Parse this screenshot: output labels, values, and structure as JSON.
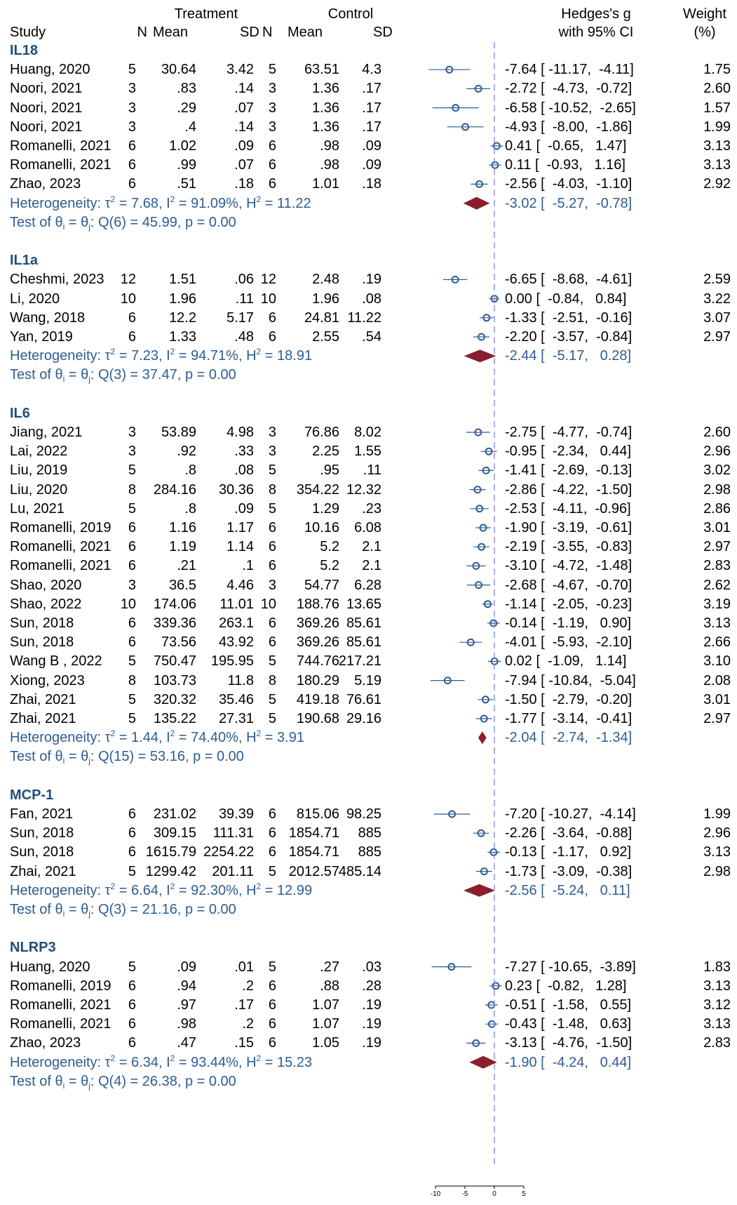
{
  "header": {
    "study": "Study",
    "treatment": "Treatment",
    "control": "Control",
    "n": "N",
    "mean": "Mean",
    "sd": "SD",
    "effect_line1": "Hedges's g",
    "effect_line2": "with 95% CI",
    "weight_line1": "Weight",
    "weight_line2": "(%)"
  },
  "colors": {
    "group_heading": "#1f4e79",
    "summary_text": "#2e5d91",
    "marker": "#2e5d91",
    "diamond": "#8b1e2d",
    "ref_line": "#8a8ae6"
  },
  "chart_data": {
    "type": "forest",
    "x_axis": {
      "ticks": [
        -10,
        -5,
        0,
        5
      ],
      "range": [
        -10,
        5
      ]
    },
    "groups": [
      {
        "name": "IL18",
        "studies": [
          {
            "study": "Huang, 2020",
            "n1": "5",
            "m1": "30.64",
            "sd1": "3.42",
            "n2": "5",
            "m2": "63.51",
            "sd2": "4.3",
            "g": -7.64,
            "lo": -11.17,
            "hi": -4.11,
            "ci_text": "-7.64 [ -11.17,  -4.11]",
            "weight": "1.75"
          },
          {
            "study": "Noori, 2021",
            "n1": "3",
            "m1": ".83",
            "sd1": ".14",
            "n2": "3",
            "m2": "1.36",
            "sd2": ".17",
            "g": -2.72,
            "lo": -4.73,
            "hi": -0.72,
            "ci_text": "-2.72 [  -4.73,  -0.72]",
            "weight": "2.60"
          },
          {
            "study": "Noori, 2021",
            "n1": "3",
            "m1": ".29",
            "sd1": ".07",
            "n2": "3",
            "m2": "1.36",
            "sd2": ".17",
            "g": -6.58,
            "lo": -10.52,
            "hi": -2.65,
            "ci_text": "-6.58 [ -10.52,  -2.65]",
            "weight": "1.57"
          },
          {
            "study": "Noori, 2021",
            "n1": "3",
            "m1": ".4",
            "sd1": ".14",
            "n2": "3",
            "m2": "1.36",
            "sd2": ".17",
            "g": -4.93,
            "lo": -8.0,
            "hi": -1.86,
            "ci_text": "-4.93 [  -8.00,  -1.86]",
            "weight": "1.99"
          },
          {
            "study": "Romanelli, 2021",
            "n1": "6",
            "m1": "1.02",
            "sd1": ".09",
            "n2": "6",
            "m2": ".98",
            "sd2": ".09",
            "g": 0.41,
            "lo": -0.65,
            "hi": 1.47,
            "ci_text": "0.41 [  -0.65,   1.47]",
            "weight": "3.13"
          },
          {
            "study": "Romanelli, 2021",
            "n1": "6",
            "m1": ".99",
            "sd1": ".07",
            "n2": "6",
            "m2": ".98",
            "sd2": ".09",
            "g": 0.11,
            "lo": -0.93,
            "hi": 1.16,
            "ci_text": "0.11 [  -0.93,   1.16]",
            "weight": "3.13"
          },
          {
            "study": "Zhao, 2023",
            "n1": "6",
            "m1": ".51",
            "sd1": ".18",
            "n2": "6",
            "m2": "1.01",
            "sd2": ".18",
            "g": -2.56,
            "lo": -4.03,
            "hi": -1.1,
            "ci_text": "-2.56 [  -4.03,  -1.10]",
            "weight": "2.92"
          }
        ],
        "het_prefix": "Heterogeneity: τ",
        "tau2": "7.68",
        "i2": "91.09%",
        "h2": "11.22",
        "pooled": {
          "g": -3.02,
          "lo": -5.27,
          "hi": -0.78,
          "ci_text": "-3.02 [  -5.27,  -0.78]"
        },
        "test_q": "Q(6) = 45.99, p = 0.00"
      },
      {
        "name": "IL1a",
        "studies": [
          {
            "study": "Cheshmi, 2023",
            "n1": "12",
            "m1": "1.51",
            "sd1": ".06",
            "n2": "12",
            "m2": "2.48",
            "sd2": ".19",
            "g": -6.65,
            "lo": -8.68,
            "hi": -4.61,
            "ci_text": "-6.65 [  -8.68,  -4.61]",
            "weight": "2.59"
          },
          {
            "study": "Li, 2020",
            "n1": "10",
            "m1": "1.96",
            "sd1": ".11",
            "n2": "10",
            "m2": "1.96",
            "sd2": ".08",
            "g": 0.0,
            "lo": -0.84,
            "hi": 0.84,
            "ci_text": "0.00 [  -0.84,   0.84]",
            "weight": "3.22"
          },
          {
            "study": "Wang, 2018",
            "n1": "6",
            "m1": "12.2",
            "sd1": "5.17",
            "n2": "6",
            "m2": "24.81",
            "sd2": "11.22",
            "g": -1.33,
            "lo": -2.51,
            "hi": -0.16,
            "ci_text": "-1.33 [  -2.51,  -0.16]",
            "weight": "3.07"
          },
          {
            "study": "Yan, 2019",
            "n1": "6",
            "m1": "1.33",
            "sd1": ".48",
            "n2": "6",
            "m2": "2.55",
            "sd2": ".54",
            "g": -2.2,
            "lo": -3.57,
            "hi": -0.84,
            "ci_text": "-2.20 [  -3.57,  -0.84]",
            "weight": "2.97"
          }
        ],
        "het_prefix": "Heterogeneity: τ",
        "tau2": "7.23",
        "i2": "94.71%",
        "h2": "18.91",
        "pooled": {
          "g": -2.44,
          "lo": -5.17,
          "hi": 0.28,
          "ci_text": "-2.44 [  -5.17,   0.28]"
        },
        "test_q": "Q(3) = 37.47, p = 0.00"
      },
      {
        "name": "IL6",
        "studies": [
          {
            "study": "Jiang, 2021",
            "n1": "3",
            "m1": "53.89",
            "sd1": "4.98",
            "n2": "3",
            "m2": "76.86",
            "sd2": "8.02",
            "g": -2.75,
            "lo": -4.77,
            "hi": -0.74,
            "ci_text": "-2.75 [  -4.77,  -0.74]",
            "weight": "2.60"
          },
          {
            "study": "Lai, 2022",
            "n1": "3",
            "m1": ".92",
            "sd1": ".33",
            "n2": "3",
            "m2": "2.25",
            "sd2": "1.55",
            "g": -0.95,
            "lo": -2.34,
            "hi": 0.44,
            "ci_text": "-0.95 [  -2.34,   0.44]",
            "weight": "2.96"
          },
          {
            "study": "Liu, 2019",
            "n1": "5",
            "m1": ".8",
            "sd1": ".08",
            "n2": "5",
            "m2": ".95",
            "sd2": ".11",
            "g": -1.41,
            "lo": -2.69,
            "hi": -0.13,
            "ci_text": "-1.41 [  -2.69,  -0.13]",
            "weight": "3.02"
          },
          {
            "study": "Liu, 2020",
            "n1": "8",
            "m1": "284.16",
            "sd1": "30.36",
            "n2": "8",
            "m2": "354.22",
            "sd2": "12.32",
            "g": -2.86,
            "lo": -4.22,
            "hi": -1.5,
            "ci_text": "-2.86 [  -4.22,  -1.50]",
            "weight": "2.98"
          },
          {
            "study": "Lu, 2021",
            "n1": "5",
            "m1": ".8",
            "sd1": ".09",
            "n2": "5",
            "m2": "1.29",
            "sd2": ".23",
            "g": -2.53,
            "lo": -4.11,
            "hi": -0.96,
            "ci_text": "-2.53 [  -4.11,  -0.96]",
            "weight": "2.86"
          },
          {
            "study": "Romanelli, 2019",
            "n1": "6",
            "m1": "1.16",
            "sd1": "1.17",
            "n2": "6",
            "m2": "10.16",
            "sd2": "6.08",
            "g": -1.9,
            "lo": -3.19,
            "hi": -0.61,
            "ci_text": "-1.90 [  -3.19,  -0.61]",
            "weight": "3.01"
          },
          {
            "study": "Romanelli, 2021",
            "n1": "6",
            "m1": "1.19",
            "sd1": "1.14",
            "n2": "6",
            "m2": "5.2",
            "sd2": "2.1",
            "g": -2.19,
            "lo": -3.55,
            "hi": -0.83,
            "ci_text": "-2.19 [  -3.55,  -0.83]",
            "weight": "2.97"
          },
          {
            "study": "Romanelli, 2021",
            "n1": "6",
            "m1": ".21",
            "sd1": ".1",
            "n2": "6",
            "m2": "5.2",
            "sd2": "2.1",
            "g": -3.1,
            "lo": -4.72,
            "hi": -1.48,
            "ci_text": "-3.10 [  -4.72,  -1.48]",
            "weight": "2.83"
          },
          {
            "study": "Shao, 2020",
            "n1": "3",
            "m1": "36.5",
            "sd1": "4.46",
            "n2": "3",
            "m2": "54.77",
            "sd2": "6.28",
            "g": -2.68,
            "lo": -4.67,
            "hi": -0.7,
            "ci_text": "-2.68 [  -4.67,  -0.70]",
            "weight": "2.62"
          },
          {
            "study": "Shao, 2022",
            "n1": "10",
            "m1": "174.06",
            "sd1": "11.01",
            "n2": "10",
            "m2": "188.76",
            "sd2": "13.65",
            "g": -1.14,
            "lo": -2.05,
            "hi": -0.23,
            "ci_text": "-1.14 [  -2.05,  -0.23]",
            "weight": "3.19"
          },
          {
            "study": "Sun, 2018",
            "n1": "6",
            "m1": "339.36",
            "sd1": "263.1",
            "n2": "6",
            "m2": "369.26",
            "sd2": "85.61",
            "g": -0.14,
            "lo": -1.19,
            "hi": 0.9,
            "ci_text": "-0.14 [  -1.19,   0.90]",
            "weight": "3.13"
          },
          {
            "study": "Sun, 2018",
            "n1": "6",
            "m1": "73.56",
            "sd1": "43.92",
            "n2": "6",
            "m2": "369.26",
            "sd2": "85.61",
            "g": -4.01,
            "lo": -5.93,
            "hi": -2.1,
            "ci_text": "-4.01 [  -5.93,  -2.10]",
            "weight": "2.66"
          },
          {
            "study": "Wang B , 2022",
            "n1": "5",
            "m1": "750.47",
            "sd1": "195.95",
            "n2": "5",
            "m2": "744.76",
            "sd2": "217.21",
            "g": 0.02,
            "lo": -1.09,
            "hi": 1.14,
            "ci_text": "0.02 [  -1.09,   1.14]",
            "weight": "3.10"
          },
          {
            "study": "Xiong, 2023",
            "n1": "8",
            "m1": "103.73",
            "sd1": "11.8",
            "n2": "8",
            "m2": "180.29",
            "sd2": "5.19",
            "g": -7.94,
            "lo": -10.84,
            "hi": -5.04,
            "ci_text": "-7.94 [ -10.84,  -5.04]",
            "weight": "2.08"
          },
          {
            "study": "Zhai, 2021",
            "n1": "5",
            "m1": "320.32",
            "sd1": "35.46",
            "n2": "5",
            "m2": "419.18",
            "sd2": "76.61",
            "g": -1.5,
            "lo": -2.79,
            "hi": -0.2,
            "ci_text": "-1.50 [  -2.79,  -0.20]",
            "weight": "3.01"
          },
          {
            "study": "Zhai, 2021",
            "n1": "5",
            "m1": "135.22",
            "sd1": "27.31",
            "n2": "5",
            "m2": "190.68",
            "sd2": "29.16",
            "g": -1.77,
            "lo": -3.14,
            "hi": -0.41,
            "ci_text": "-1.77 [  -3.14,  -0.41]",
            "weight": "2.97"
          }
        ],
        "het_prefix": "Heterogeneity: τ",
        "tau2": "1.44",
        "i2": "74.40%",
        "h2": "3.91",
        "pooled": {
          "g": -2.04,
          "lo": -2.74,
          "hi": -1.34,
          "ci_text": "-2.04 [  -2.74,  -1.34]"
        },
        "test_q": "Q(15) = 53.16, p = 0.00"
      },
      {
        "name": "MCP-1",
        "studies": [
          {
            "study": "Fan, 2021",
            "n1": "6",
            "m1": "231.02",
            "sd1": "39.39",
            "n2": "6",
            "m2": "815.06",
            "sd2": "98.25",
            "g": -7.2,
            "lo": -10.27,
            "hi": -4.14,
            "ci_text": "-7.20 [ -10.27,  -4.14]",
            "weight": "1.99"
          },
          {
            "study": "Sun, 2018",
            "n1": "6",
            "m1": "309.15",
            "sd1": "111.31",
            "n2": "6",
            "m2": "1854.71",
            "sd2": "885",
            "g": -2.26,
            "lo": -3.64,
            "hi": -0.88,
            "ci_text": "-2.26 [  -3.64,  -0.88]",
            "weight": "2.96"
          },
          {
            "study": "Sun, 2018",
            "n1": "6",
            "m1": "1615.79",
            "sd1": "2254.22",
            "n2": "6",
            "m2": "1854.71",
            "sd2": "885",
            "g": -0.13,
            "lo": -1.17,
            "hi": 0.92,
            "ci_text": "-0.13 [  -1.17,   0.92]",
            "weight": "3.13"
          },
          {
            "study": "Zhai, 2021",
            "n1": "5",
            "m1": "1299.42",
            "sd1": "201.11",
            "n2": "5",
            "m2": "2012.57",
            "sd2": "485.14",
            "g": -1.73,
            "lo": -3.09,
            "hi": -0.38,
            "ci_text": "-1.73 [  -3.09,  -0.38]",
            "weight": "2.98"
          }
        ],
        "het_prefix": "Heterogeneity: τ",
        "tau2": "6.64",
        "i2": "92.30%",
        "h2": "12.99",
        "pooled": {
          "g": -2.56,
          "lo": -5.24,
          "hi": 0.11,
          "ci_text": "-2.56 [  -5.24,   0.11]"
        },
        "test_q": "Q(3) = 21.16, p = 0.00"
      },
      {
        "name": "NLRP3",
        "studies": [
          {
            "study": "Huang, 2020",
            "n1": "5",
            "m1": ".09",
            "sd1": ".01",
            "n2": "5",
            "m2": ".27",
            "sd2": ".03",
            "g": -7.27,
            "lo": -10.65,
            "hi": -3.89,
            "ci_text": "-7.27 [ -10.65,  -3.89]",
            "weight": "1.83"
          },
          {
            "study": "Romanelli, 2019",
            "n1": "6",
            "m1": ".94",
            "sd1": ".2",
            "n2": "6",
            "m2": ".88",
            "sd2": ".28",
            "g": 0.23,
            "lo": -0.82,
            "hi": 1.28,
            "ci_text": "0.23 [  -0.82,   1.28]",
            "weight": "3.13"
          },
          {
            "study": "Romanelli, 2021",
            "n1": "6",
            "m1": ".97",
            "sd1": ".17",
            "n2": "6",
            "m2": "1.07",
            "sd2": ".19",
            "g": -0.51,
            "lo": -1.58,
            "hi": 0.55,
            "ci_text": "-0.51 [  -1.58,   0.55]",
            "weight": "3.12"
          },
          {
            "study": "Romanelli, 2021",
            "n1": "6",
            "m1": ".98",
            "sd1": ".2",
            "n2": "6",
            "m2": "1.07",
            "sd2": ".19",
            "g": -0.43,
            "lo": -1.48,
            "hi": 0.63,
            "ci_text": "-0.43 [  -1.48,   0.63]",
            "weight": "3.13"
          },
          {
            "study": "Zhao, 2023",
            "n1": "6",
            "m1": ".47",
            "sd1": ".15",
            "n2": "6",
            "m2": "1.05",
            "sd2": ".19",
            "g": -3.13,
            "lo": -4.76,
            "hi": -1.5,
            "ci_text": "-3.13 [  -4.76,  -1.50]",
            "weight": "2.83"
          }
        ],
        "het_prefix": "Heterogeneity: τ",
        "tau2": "6.34",
        "i2": "93.44%",
        "h2": "15.23",
        "pooled": {
          "g": -1.9,
          "lo": -4.24,
          "hi": 0.44,
          "ci_text": "-1.90 [  -4.24,   0.44]"
        },
        "test_q": "Q(4) = 26.38, p = 0.00"
      }
    ]
  }
}
